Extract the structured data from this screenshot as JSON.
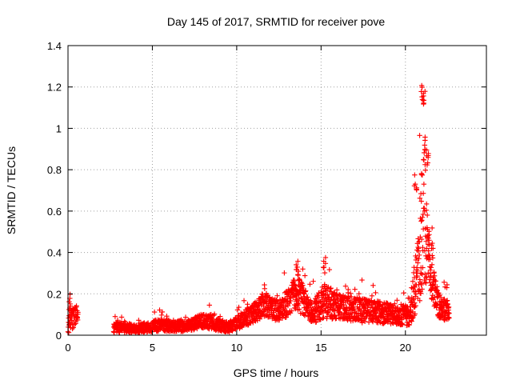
{
  "chart_data": {
    "type": "scatter",
    "title": "Day 145 of 2017, SRMTID for receiver pove",
    "xlabel": "GPS time / hours",
    "ylabel": "SRMTID / TECUs",
    "xlim": [
      0,
      24.8
    ],
    "ylim": [
      0,
      1.4
    ],
    "x_ticks": [
      0,
      5,
      10,
      15,
      20
    ],
    "x_tick_labels": [
      "0",
      "5",
      "10",
      "15",
      "20"
    ],
    "y_ticks": [
      0,
      0.2,
      0.4,
      0.6,
      0.8,
      1.0,
      1.2,
      1.4
    ],
    "y_tick_labels": [
      "0",
      "0.2",
      "0.4",
      "0.6",
      "0.8",
      "1",
      "1.2",
      "1.4"
    ],
    "grid": true,
    "marker": "plus",
    "color": "#ff0000",
    "series": [
      {
        "name": "SRMTID",
        "envelope": [
          {
            "x": 0.0,
            "y": 0.05,
            "spread": 0.12
          },
          {
            "x": 0.5,
            "y": 0.08,
            "spread": 0.1
          },
          {
            "x": 2.7,
            "y": 0.03,
            "spread": 0.05
          },
          {
            "x": 4.0,
            "y": 0.025,
            "spread": 0.04
          },
          {
            "x": 5.5,
            "y": 0.04,
            "spread": 0.06
          },
          {
            "x": 7.0,
            "y": 0.035,
            "spread": 0.05
          },
          {
            "x": 8.0,
            "y": 0.06,
            "spread": 0.07
          },
          {
            "x": 9.5,
            "y": 0.03,
            "spread": 0.05
          },
          {
            "x": 10.5,
            "y": 0.07,
            "spread": 0.08
          },
          {
            "x": 11.7,
            "y": 0.13,
            "spread": 0.12
          },
          {
            "x": 12.5,
            "y": 0.1,
            "spread": 0.1
          },
          {
            "x": 13.6,
            "y": 0.18,
            "spread": 0.18
          },
          {
            "x": 14.5,
            "y": 0.09,
            "spread": 0.1
          },
          {
            "x": 15.2,
            "y": 0.14,
            "spread": 0.18
          },
          {
            "x": 16.0,
            "y": 0.12,
            "spread": 0.12
          },
          {
            "x": 17.5,
            "y": 0.1,
            "spread": 0.12
          },
          {
            "x": 19.0,
            "y": 0.09,
            "spread": 0.1
          },
          {
            "x": 20.3,
            "y": 0.08,
            "spread": 0.1
          },
          {
            "x": 20.8,
            "y": 0.3,
            "spread": 0.45
          },
          {
            "x": 21.1,
            "y": 0.5,
            "spread": 0.7
          },
          {
            "x": 21.5,
            "y": 0.25,
            "spread": 0.2
          },
          {
            "x": 22.0,
            "y": 0.12,
            "spread": 0.12
          },
          {
            "x": 22.6,
            "y": 0.1,
            "spread": 0.1
          }
        ],
        "peaks": [
          {
            "x": 0.1,
            "y": 0.2
          },
          {
            "x": 13.6,
            "y": 0.37
          },
          {
            "x": 15.2,
            "y": 0.38
          },
          {
            "x": 20.6,
            "y": 0.78
          },
          {
            "x": 20.9,
            "y": 0.32
          },
          {
            "x": 21.0,
            "y": 1.21
          },
          {
            "x": 21.1,
            "y": 1.18
          },
          {
            "x": 21.2,
            "y": 0.97
          },
          {
            "x": 21.3,
            "y": 0.89
          },
          {
            "x": 21.6,
            "y": 0.45
          }
        ]
      }
    ]
  }
}
